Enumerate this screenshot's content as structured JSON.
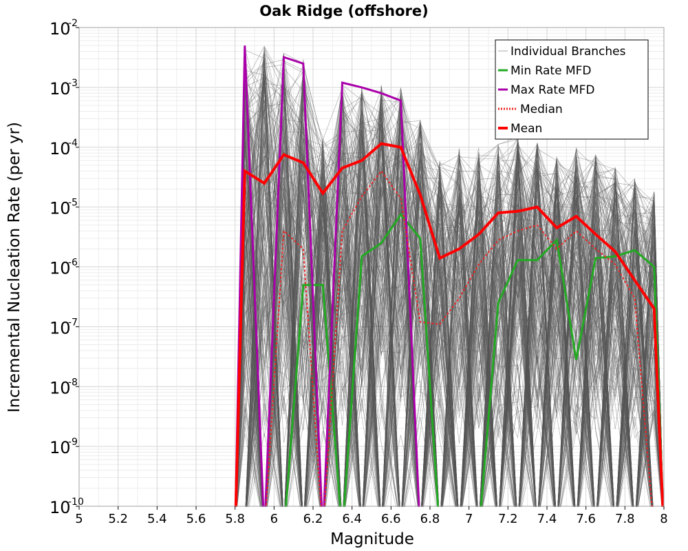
{
  "chart_data": {
    "type": "line",
    "title": "Oak Ridge (offshore)",
    "xlabel": "Magnitude",
    "ylabel": "Incremental Nucleation Rate (per yr)",
    "xlim": [
      5,
      8
    ],
    "ylim": [
      1e-10,
      0.01
    ],
    "yscale": "log",
    "x_ticks": [
      5,
      5.2,
      5.4,
      5.6,
      5.8,
      6,
      6.2,
      6.4,
      6.6,
      6.8,
      7,
      7.2,
      7.4,
      7.6,
      7.8,
      8
    ],
    "x_tick_labels": [
      "5",
      "5.2",
      "5.4",
      "5.6",
      "5.8",
      "6",
      "6.2",
      "6.4",
      "6.6",
      "6.8",
      "7",
      "7.2",
      "7.4",
      "7.6",
      "7.8",
      "8"
    ],
    "y_ticks": [
      {
        "base": "10",
        "exp": "-2",
        "value": 0.01
      },
      {
        "base": "10",
        "exp": "-3",
        "value": 0.001
      },
      {
        "base": "10",
        "exp": "-4",
        "value": 0.0001
      },
      {
        "base": "10",
        "exp": "-5",
        "value": 1e-05
      },
      {
        "base": "10",
        "exp": "-6",
        "value": 1e-06
      },
      {
        "base": "10",
        "exp": "-7",
        "value": 1e-07
      },
      {
        "base": "10",
        "exp": "-8",
        "value": 1e-08
      },
      {
        "base": "10",
        "exp": "-9",
        "value": 1e-09
      },
      {
        "base": "10",
        "exp": "-10",
        "value": 1e-10
      }
    ],
    "grid": true,
    "legend_position": "top-right",
    "legend": [
      {
        "label": "Individual Branches",
        "color": "#aaaaaa",
        "style": "thin"
      },
      {
        "label": "Min Rate MFD",
        "color": "#22aa22",
        "style": "solid"
      },
      {
        "label": "Max Rate MFD",
        "color": "#aa00aa",
        "style": "solid"
      },
      {
        "label": "Median",
        "color": "#ee2222",
        "style": "dotted"
      },
      {
        "label": "Mean",
        "color": "#ff0000",
        "style": "thick"
      }
    ],
    "x": [
      5.85,
      5.95,
      6.05,
      6.15,
      6.25,
      6.35,
      6.45,
      6.55,
      6.65,
      6.75,
      6.85,
      6.95,
      7.05,
      7.15,
      7.25,
      7.35,
      7.45,
      7.55,
      7.65,
      7.75,
      7.85,
      7.95
    ],
    "series": [
      {
        "name": "Mean",
        "color": "#ff0000",
        "width": 4,
        "dash": "",
        "values": [
          4e-05,
          2.5e-05,
          7.5e-05,
          5.5e-05,
          1.7e-05,
          4.5e-05,
          6e-05,
          0.000115,
          0.0001,
          1.6e-05,
          1.4e-06,
          2e-06,
          3.5e-06,
          8e-06,
          8.5e-06,
          1e-05,
          4.5e-06,
          7e-06,
          3.5e-06,
          1.8e-06,
          6e-07,
          2e-07
        ],
        "x_start": 5.8,
        "x_end": null
      },
      {
        "name": "Median",
        "color": "#ee2222",
        "width": 2,
        "dash": "3,3",
        "values": [
          null,
          null,
          4e-06,
          2e-06,
          null,
          4e-06,
          1.5e-05,
          4e-05,
          1.4e-05,
          1.2e-07,
          1.1e-07,
          3e-07,
          1.1e-06,
          2.8e-06,
          4e-06,
          5e-06,
          2e-06,
          4e-06,
          2e-06,
          1.1e-06,
          3e-07,
          null
        ],
        "x_start": null,
        "x_end": null
      },
      {
        "name": "Min Rate MFD",
        "color": "#22aa22",
        "width": 3,
        "dash": "",
        "values": [
          null,
          null,
          null,
          5e-07,
          5e-07,
          null,
          1.5e-06,
          2.5e-06,
          7.5e-06,
          3e-06,
          null,
          null,
          null,
          2.5e-07,
          1.3e-06,
          1.3e-06,
          2.8e-06,
          2.8e-08,
          1.4e-06,
          1.5e-06,
          1.9e-06,
          1e-06
        ],
        "x_start": null,
        "x_end": null
      },
      {
        "name": "Max Rate MFD",
        "color": "#aa00aa",
        "width": 3,
        "dash": "",
        "values": [
          0.005,
          null,
          0.0032,
          0.0025,
          null,
          0.0012,
          0.001,
          0.0008,
          0.0006,
          null,
          null,
          null,
          null,
          null,
          null,
          null,
          null,
          null,
          null,
          null,
          null,
          null
        ],
        "x_start": null,
        "x_end": null
      }
    ],
    "individual_branches_count": "many"
  }
}
